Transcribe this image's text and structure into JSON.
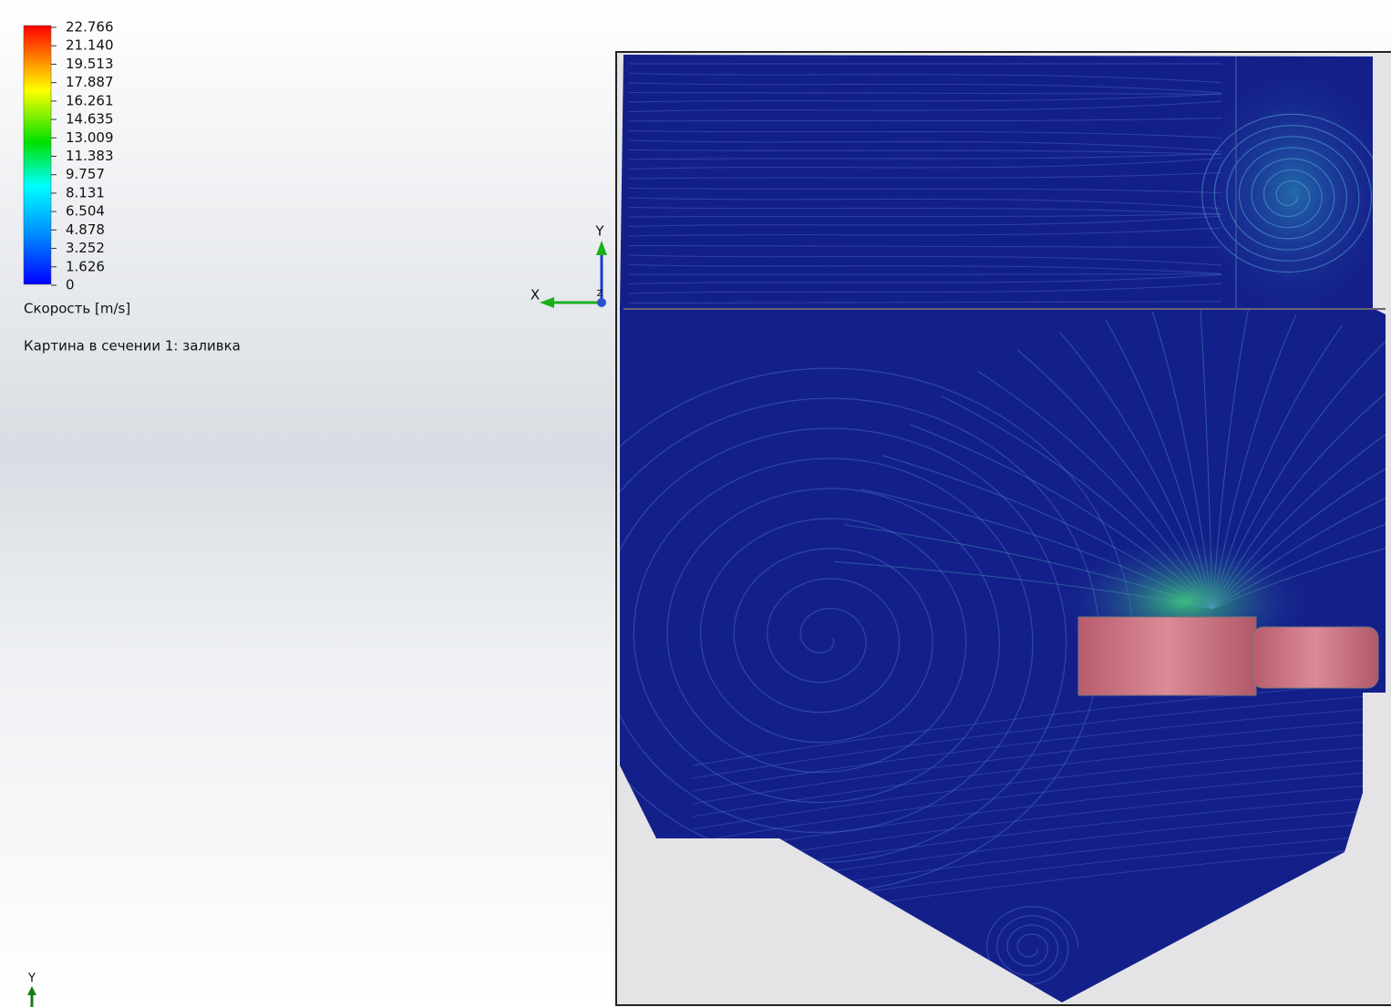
{
  "legend": {
    "ticks": [
      "22.766",
      "21.140",
      "19.513",
      "17.887",
      "16.261",
      "14.635",
      "13.009",
      "11.383",
      "9.757",
      "8.131",
      "6.504",
      "4.878",
      "3.252",
      "1.626",
      "0"
    ],
    "title": "Скорость [m/s]"
  },
  "caption": "Картина в сечении 1: заливка",
  "triad": {
    "y": "Y",
    "x": "X",
    "z": "Z"
  },
  "corner_triad": {
    "y": "Y"
  }
}
